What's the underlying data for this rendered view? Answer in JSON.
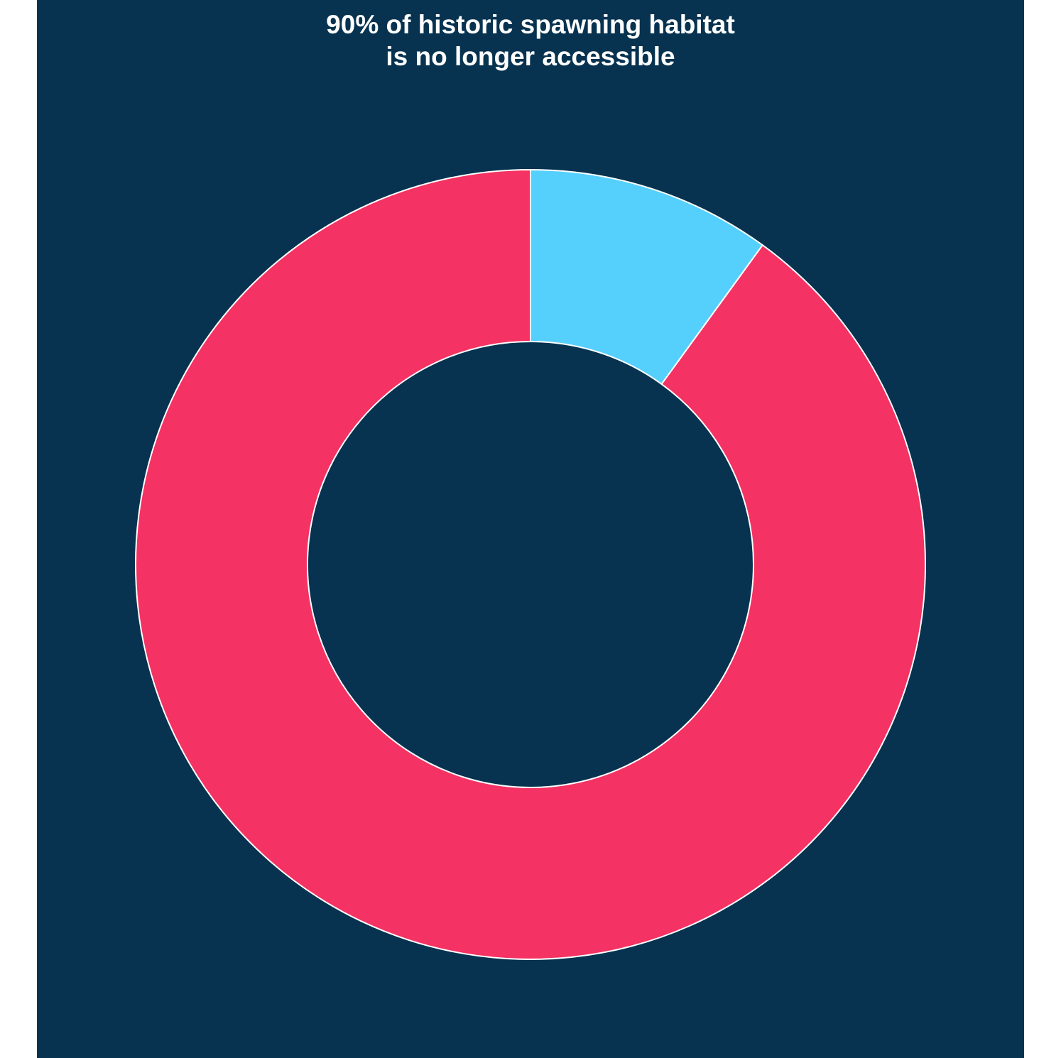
{
  "chart_data": {
    "type": "pie",
    "title_lines": [
      "90% of historic spawning habitat",
      "is no longer accessible"
    ],
    "slices": [
      {
        "label": "",
        "value": 10,
        "color": "#55CFFC"
      },
      {
        "label": "",
        "value": 90,
        "color": "#F43263"
      }
    ],
    "donut": true,
    "background": "#073350",
    "stroke": "#FFFFFF",
    "legend": "none"
  }
}
